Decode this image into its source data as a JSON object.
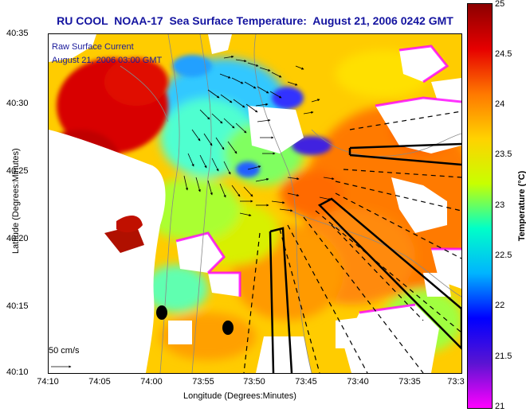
{
  "title": "RU COOL  NOAA-17  Sea Surface Temperature:  August 21, 2006 0242 GMT",
  "overlay": {
    "current_label": "Raw Surface Current",
    "current_time": "August 21, 2006 03:00 GMT",
    "scale_label": "50 cm/s"
  },
  "axes": {
    "xlabel": "Longitude (Degrees:Minutes)",
    "ylabel": "Latitude (Degrees:Minutes)",
    "xticks": [
      "74:10",
      "74:05",
      "74:00",
      "73:55",
      "73:50",
      "73:45",
      "73:40",
      "73:35",
      "73:3"
    ],
    "yticks": [
      "40:35",
      "40:30",
      "40:25",
      "40:20",
      "40:15",
      "40:10"
    ]
  },
  "colorbar": {
    "label": "Temperature (°C)",
    "ticks": [
      "25",
      "24.5",
      "24",
      "23.5",
      "23",
      "22.5",
      "22",
      "21.5",
      "21"
    ],
    "range": [
      21,
      25
    ],
    "colors": [
      "#ff00ff",
      "#5a14d2",
      "#0000ff",
      "#00b4ff",
      "#00ffc8",
      "#c8ff00",
      "#ffd200",
      "#ff7800",
      "#e60000",
      "#8c0000"
    ]
  }
}
